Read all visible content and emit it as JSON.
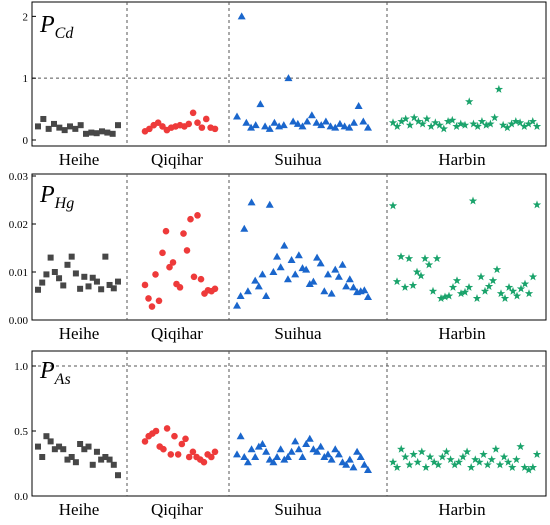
{
  "chart_data": [
    {
      "type": "scatter",
      "label_main": "P",
      "label_sub": "Cd",
      "ylim": [
        0,
        2.2
      ],
      "yticks": [
        0,
        1,
        2
      ],
      "ytick_labels": [
        "0",
        "1",
        "2"
      ],
      "reference_line": 1,
      "categories": [
        "Heihe",
        "Qiqihar",
        "Suihua",
        "Harbin"
      ],
      "series": [
        {
          "category": "Heihe",
          "marker": "square",
          "color": "#474747",
          "values": [
            0.22,
            0.34,
            0.18,
            0.26,
            0.2,
            0.16,
            0.22,
            0.18,
            0.24,
            0.1,
            0.12,
            0.11,
            0.14,
            0.12,
            0.1,
            0.24
          ]
        },
        {
          "category": "Qiqihar",
          "marker": "circle",
          "color": "#ee3a3a",
          "values": [
            0.14,
            0.18,
            0.24,
            0.28,
            0.22,
            0.16,
            0.2,
            0.22,
            0.24,
            0.22,
            0.26,
            0.44,
            0.28,
            0.2,
            0.34,
            0.2,
            0.18
          ]
        },
        {
          "category": "Suihua",
          "marker": "triangle",
          "color": "#1a66cc",
          "values": [
            0.38,
            2.0,
            0.28,
            0.2,
            0.24,
            0.58,
            0.22,
            0.18,
            0.28,
            0.22,
            0.24,
            1.0,
            0.3,
            0.26,
            0.22,
            0.3,
            0.4,
            0.28,
            0.24,
            0.3,
            0.22,
            0.2,
            0.26,
            0.22,
            0.2,
            0.28,
            0.55,
            0.3,
            0.2
          ]
        },
        {
          "category": "Harbin",
          "marker": "star",
          "color": "#1aa36b",
          "values": [
            0.28,
            0.22,
            0.3,
            0.34,
            0.24,
            0.36,
            0.3,
            0.26,
            0.34,
            0.22,
            0.28,
            0.24,
            0.18,
            0.3,
            0.32,
            0.22,
            0.26,
            0.24,
            0.62,
            0.26,
            0.22,
            0.3,
            0.24,
            0.26,
            0.36,
            0.82,
            0.24,
            0.2,
            0.26,
            0.3,
            0.28,
            0.22,
            0.26,
            0.3,
            0.22
          ]
        }
      ]
    },
    {
      "type": "scatter",
      "label_main": "P",
      "label_sub": "Hg",
      "ylim": [
        0,
        0.03
      ],
      "yticks": [
        0,
        0.01,
        0.02,
        0.03
      ],
      "ytick_labels": [
        "0.00",
        "0.01",
        "0.02",
        "0.03"
      ],
      "categories": [
        "Heihe",
        "Qiqihar",
        "Suihua",
        "Harbin"
      ],
      "series": [
        {
          "category": "Heihe",
          "marker": "square",
          "color": "#474747",
          "values": [
            0.0063,
            0.0078,
            0.0095,
            0.013,
            0.01,
            0.0087,
            0.0072,
            0.0115,
            0.0132,
            0.0097,
            0.0065,
            0.009,
            0.007,
            0.0088,
            0.008,
            0.0064,
            0.0132,
            0.0073,
            0.0066,
            0.008
          ]
        },
        {
          "category": "Qiqihar",
          "marker": "circle",
          "color": "#ee3a3a",
          "values": [
            0.0073,
            0.0045,
            0.0028,
            0.0095,
            0.004,
            0.014,
            0.0185,
            0.011,
            0.012,
            0.0075,
            0.0068,
            0.018,
            0.0145,
            0.021,
            0.009,
            0.0218,
            0.0085,
            0.0055,
            0.0062,
            0.006,
            0.0065
          ]
        },
        {
          "category": "Suihua",
          "marker": "triangle",
          "color": "#1a66cc",
          "values": [
            0.003,
            0.005,
            0.019,
            0.006,
            0.0245,
            0.0082,
            0.007,
            0.0095,
            0.005,
            0.024,
            0.01,
            0.0132,
            0.011,
            0.0155,
            0.0085,
            0.0125,
            0.0095,
            0.0135,
            0.0108,
            0.0105,
            0.0075,
            0.008,
            0.013,
            0.0118,
            0.006,
            0.0095,
            0.0055,
            0.0105,
            0.009,
            0.0115,
            0.007,
            0.0085,
            0.0068,
            0.0058,
            0.006,
            0.0062,
            0.0048
          ]
        },
        {
          "category": "Harbin",
          "marker": "star",
          "color": "#1aa36b",
          "values": [
            0.0238,
            0.008,
            0.0132,
            0.0068,
            0.0128,
            0.0072,
            0.01,
            0.0092,
            0.0128,
            0.0115,
            0.006,
            0.0128,
            0.0045,
            0.0048,
            0.005,
            0.0068,
            0.0082,
            0.0055,
            0.0058,
            0.0068,
            0.0248,
            0.0045,
            0.009,
            0.006,
            0.007,
            0.0082,
            0.0105,
            0.0055,
            0.0045,
            0.0068,
            0.006,
            0.005,
            0.0065,
            0.0075,
            0.0055,
            0.009,
            0.024
          ]
        }
      ]
    },
    {
      "type": "scatter",
      "label_main": "P",
      "label_sub": "As",
      "ylim": [
        0,
        1.1
      ],
      "yticks": [
        0,
        0.5,
        1.0
      ],
      "ytick_labels": [
        "0.0",
        "0.5",
        "1.0"
      ],
      "reference_line": 1,
      "categories": [
        "Heihe",
        "Qiqihar",
        "Suihua",
        "Harbin"
      ],
      "series": [
        {
          "category": "Heihe",
          "marker": "square",
          "color": "#474747",
          "values": [
            0.38,
            0.3,
            0.46,
            0.42,
            0.36,
            0.38,
            0.36,
            0.28,
            0.3,
            0.26,
            0.4,
            0.36,
            0.38,
            0.24,
            0.34,
            0.28,
            0.3,
            0.28,
            0.24,
            0.16
          ]
        },
        {
          "category": "Qiqihar",
          "marker": "circle",
          "color": "#ee3a3a",
          "values": [
            0.42,
            0.46,
            0.48,
            0.5,
            0.38,
            0.36,
            0.52,
            0.32,
            0.46,
            0.32,
            0.4,
            0.44,
            0.3,
            0.34,
            0.3,
            0.28,
            0.26,
            0.32,
            0.3,
            0.34
          ]
        },
        {
          "category": "Suihua",
          "marker": "triangle",
          "color": "#1a66cc",
          "values": [
            0.32,
            0.46,
            0.3,
            0.26,
            0.36,
            0.3,
            0.38,
            0.4,
            0.34,
            0.28,
            0.26,
            0.3,
            0.36,
            0.28,
            0.3,
            0.34,
            0.42,
            0.36,
            0.3,
            0.4,
            0.44,
            0.36,
            0.34,
            0.38,
            0.3,
            0.32,
            0.28,
            0.36,
            0.32,
            0.26,
            0.24,
            0.28,
            0.22,
            0.34,
            0.3,
            0.24,
            0.2
          ]
        },
        {
          "category": "Harbin",
          "marker": "star",
          "color": "#1aa36b",
          "values": [
            0.26,
            0.22,
            0.36,
            0.3,
            0.24,
            0.32,
            0.26,
            0.34,
            0.22,
            0.3,
            0.26,
            0.24,
            0.3,
            0.34,
            0.28,
            0.24,
            0.26,
            0.3,
            0.34,
            0.22,
            0.28,
            0.26,
            0.32,
            0.24,
            0.28,
            0.36,
            0.24,
            0.3,
            0.26,
            0.22,
            0.28,
            0.38,
            0.22,
            0.2,
            0.22,
            0.32
          ]
        }
      ]
    }
  ]
}
